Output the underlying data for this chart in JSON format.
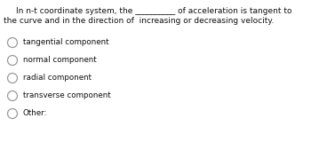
{
  "question_line1": "In n-t coordinate system, the __________ of acceleration is tangent to",
  "question_line2": "the curve and in the direction of  increasing or decreasing velocity.",
  "options": [
    "tangential component",
    "normal component",
    "radial component",
    "transverse component",
    "Other:"
  ],
  "background_color": "#ffffff",
  "text_color": "#111111",
  "font_size_question": 6.5,
  "font_size_options": 6.3,
  "circle_color": "#999999",
  "circle_linewidth": 0.9
}
